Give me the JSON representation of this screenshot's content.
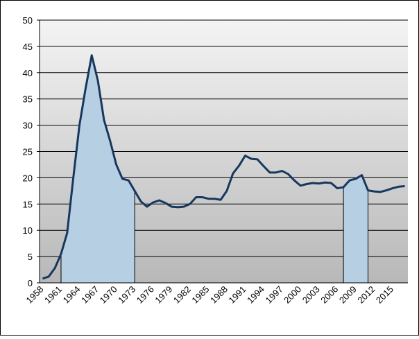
{
  "chart_data": {
    "type": "line",
    "categories": [
      "1958",
      null,
      null,
      "1961",
      null,
      null,
      "1964",
      null,
      null,
      "1967",
      null,
      null,
      "1970",
      null,
      null,
      "1973",
      null,
      null,
      "1976",
      null,
      null,
      "1979",
      null,
      null,
      "1982",
      null,
      null,
      "1985",
      null,
      null,
      "1988",
      null,
      null,
      "1991",
      null,
      null,
      "1994",
      null,
      null,
      "1997",
      null,
      null,
      "2000",
      null,
      null,
      "2003",
      null,
      null,
      "2006",
      null,
      null,
      "2009",
      null,
      null,
      "2012",
      null,
      null,
      "2015",
      null,
      null
    ],
    "series": [
      {
        "type": "line",
        "color": "#17375e",
        "values": [
          0.8,
          1.2,
          2.8,
          5.5,
          9.5,
          20,
          30,
          37,
          43.3,
          38.5,
          31,
          27,
          22.5,
          19.8,
          19.5,
          17.5,
          15.5,
          14.5,
          15.3,
          15.7,
          15.2,
          14.5,
          14.4,
          14.5,
          15,
          16.3,
          16.3,
          16,
          16,
          15.8,
          17.5,
          20.8,
          22.3,
          24.2,
          23.6,
          23.5,
          22.2,
          21,
          21,
          21.3,
          20.7,
          19.5,
          18.5,
          18.8,
          19,
          18.9,
          19.1,
          19,
          18,
          18.2,
          19.5,
          19.8,
          20.5,
          17.6,
          17.4,
          17.3,
          17.6,
          18,
          18.3,
          18.4
        ]
      },
      {
        "type": "area",
        "color": "#b7cfe2",
        "values": [
          null,
          null,
          null,
          5.5,
          9.5,
          20,
          30,
          37,
          43.3,
          38.5,
          31,
          27,
          22.5,
          19.8,
          19.5,
          17.5,
          null,
          null,
          null,
          null,
          null,
          null,
          null,
          null,
          null,
          null,
          null,
          null,
          null,
          null,
          null,
          null,
          null,
          null,
          null,
          null,
          null,
          null,
          null,
          null,
          null,
          null,
          null,
          null,
          null,
          null,
          null,
          null,
          null,
          18.2,
          19.5,
          19.8,
          20.5,
          17.6,
          null,
          null,
          null,
          null,
          null,
          null
        ]
      }
    ],
    "ylim": [
      0,
      50
    ],
    "yticks": [
      0,
      5,
      10,
      15,
      20,
      25,
      30,
      35,
      40,
      45,
      50
    ],
    "grid": true
  }
}
